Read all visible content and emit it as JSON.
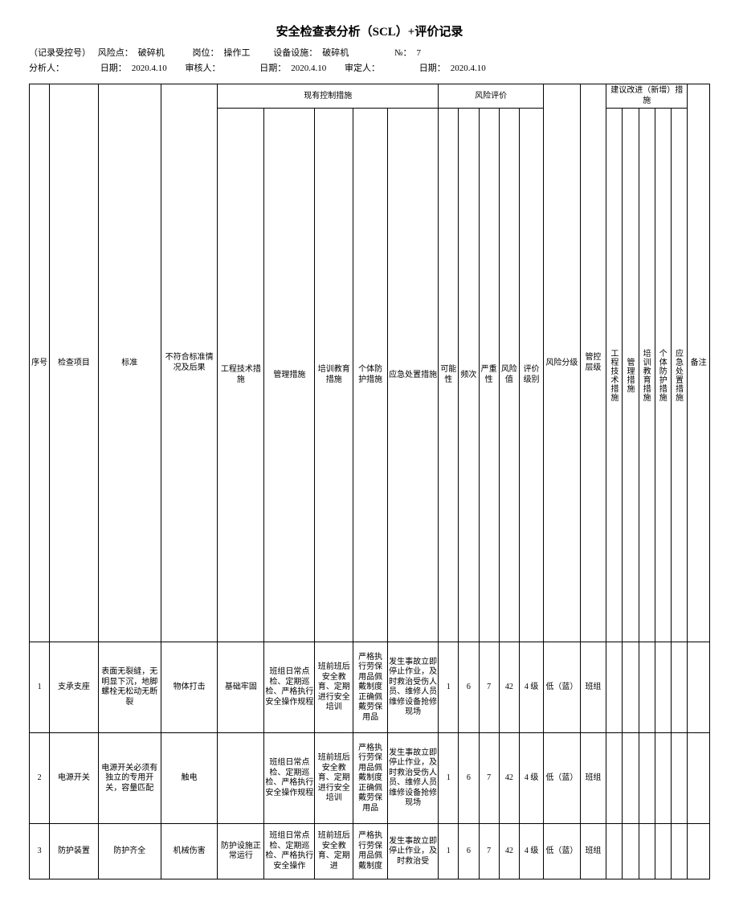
{
  "title": "安全检查表分析（SCL）+评价记录",
  "meta": {
    "line1": {
      "rec": "（记录受控号）",
      "risk_label": "风险点：",
      "risk_val": "破碎机",
      "pos_label": "岗位：",
      "pos_val": "操作工",
      "dev_label": "设备设施：",
      "dev_val": "破碎机",
      "no_label": "№：",
      "no_val": "7"
    },
    "line2": {
      "analyst": "分析人：",
      "date1_label": "日期：",
      "date1_val": "2020.4.10",
      "auditor": "审核人：",
      "date2_label": "日期：",
      "date2_val": "2020.4.10",
      "approver": "审定人：",
      "date3_label": "日期：",
      "date3_val": "2020.4.10"
    }
  },
  "headers": {
    "seq": "序号",
    "check_item": "检查项目",
    "standard": "标准",
    "noncomp": "不符合标准情况及后果",
    "existing_group": "现有控制措施",
    "eng_measure": "工程技术措施",
    "mgmt_measure": "管理措施",
    "train_measure": "培训教育措施",
    "ppe_measure": "个体防护措施",
    "emerg_measure": "应急处置措施",
    "risk_eval_group": "风险评价",
    "possibility": "可能性",
    "frequency": "频次",
    "severity": "严重性",
    "risk_val": "风险值",
    "eval_level": "评价级别",
    "risk_grade": "风险分级",
    "ctrl_level": "管控层级",
    "suggest_group": "建议改进（新增）措施",
    "sugg_eng": "工程技术措施",
    "sugg_mgmt": "管理措施",
    "sugg_train": "培训教育措施",
    "sugg_ppe": "个体防护措施",
    "sugg_emerg": "应急处置措施",
    "remark": "备注"
  },
  "rows": [
    {
      "seq": "1",
      "check_item": "支承支座",
      "standard": "表面无裂缝，无明显下沉，地脚螺栓无松动无断裂",
      "noncomp": "物体打击",
      "eng": "基础牢固",
      "mgmt": "班组日常点检、定期巡检、严格执行安全操作规程",
      "train": "班前班后安全教育、定期进行安全培训",
      "ppe": "严格执行劳保用品佩戴制度正确佩戴劳保用品",
      "emerg": "发生事故立即停止作业，及时救治受伤人员、维修人员维修设备抢修现场",
      "poss": "1",
      "freq": "6",
      "sev": "7",
      "rv": "42",
      "elvl": "4 级",
      "rgrade": "低（蓝）",
      "clvl": "班组"
    },
    {
      "seq": "2",
      "check_item": "电源开关",
      "standard": "电源开关必须有独立的专用开关，容量匹配",
      "noncomp": "触电",
      "eng": "",
      "mgmt": "班组日常点检、定期巡检、严格执行安全操作规程",
      "train": "班前班后安全教育、定期进行安全培训",
      "ppe": "严格执行劳保用品佩戴制度正确佩戴劳保用品",
      "emerg": "发生事故立即停止作业，及时救治受伤人员、维修人员维修设备抢修现场",
      "poss": "1",
      "freq": "6",
      "sev": "7",
      "rv": "42",
      "elvl": "4 级",
      "rgrade": "低（蓝）",
      "clvl": "班组"
    },
    {
      "seq": "3",
      "check_item": "防护装置",
      "standard": "防护齐全",
      "noncomp": "机械伤害",
      "eng": "防护设施正常运行",
      "mgmt": "班组日常点检、定期巡检、严格执行安全操作",
      "train": "班前班后安全教育、定期进",
      "ppe": "严格执行劳保用品佩戴制度",
      "emerg": "发生事故立即停止作业，及时救治受",
      "poss": "1",
      "freq": "6",
      "sev": "7",
      "rv": "42",
      "elvl": "4 级",
      "rgrade": "低（蓝）",
      "clvl": "班组"
    }
  ]
}
